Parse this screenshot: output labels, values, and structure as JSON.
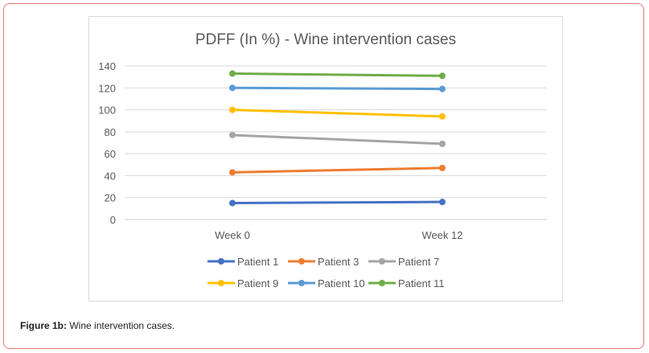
{
  "caption": {
    "label": "Figure 1b:",
    "text": " Wine intervention cases."
  },
  "chart_data": {
    "type": "line",
    "title": "PDFF (In %) - Wine intervention cases",
    "categories": [
      "Week 0",
      "Week 12"
    ],
    "ylim": [
      0,
      140
    ],
    "yticks": [
      0,
      20,
      40,
      60,
      80,
      100,
      120,
      140
    ],
    "grid": true,
    "legend_position": "bottom",
    "series": [
      {
        "name": "Patient 1",
        "color": "#4472C4",
        "values": [
          15,
          16
        ]
      },
      {
        "name": "Patient 3",
        "color": "#ED7D31",
        "values": [
          43,
          47
        ]
      },
      {
        "name": "Patient 7",
        "color": "#A5A5A5",
        "values": [
          77,
          69
        ]
      },
      {
        "name": "Patient 9",
        "color": "#FFC000",
        "values": [
          100,
          94
        ]
      },
      {
        "name": "Patient 10",
        "color": "#5B9BD5",
        "values": [
          120,
          119
        ]
      },
      {
        "name": "Patient 11",
        "color": "#70AD47",
        "values": [
          133,
          131
        ]
      }
    ]
  }
}
